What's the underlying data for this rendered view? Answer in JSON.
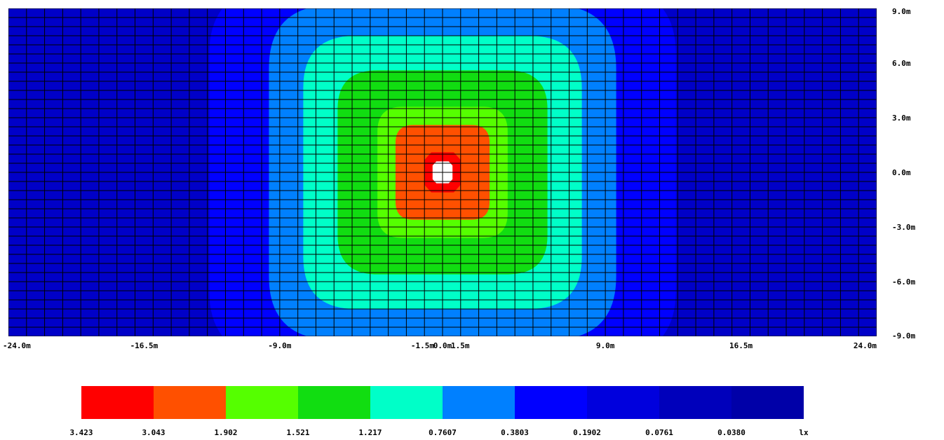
{
  "chart_data": {
    "type": "heatmap",
    "title": "",
    "xlabel": "",
    "ylabel": "",
    "x_unit": "m",
    "y_unit": "m",
    "xlim": [
      -24.0,
      24.0
    ],
    "ylim": [
      -9.0,
      9.0
    ],
    "grid": true,
    "grid_cols": 48,
    "grid_rows": 36,
    "x_ticks": [
      "-24.0m",
      "-16.5m",
      "-9.0m",
      "-1.5m",
      "0.0m",
      "1.5m",
      "9.0m",
      "16.5m",
      "24.0m"
    ],
    "x_tick_values": [
      -24.0,
      -16.5,
      -9.0,
      -1.5,
      0.0,
      1.5,
      9.0,
      16.5,
      24.0
    ],
    "y_ticks": [
      "9.0m",
      "6.0m",
      "3.0m",
      "0.0m",
      "-3.0m",
      "-6.0m",
      "-9.0m"
    ],
    "y_tick_values": [
      9.0,
      6.0,
      3.0,
      0.0,
      -3.0,
      -6.0,
      -9.0
    ],
    "source_center": [
      0.0,
      0.0
    ],
    "contours": [
      {
        "level": "3.423",
        "color": "#ffffff",
        "hx": 0.55,
        "hy": 0.6
      },
      {
        "level": "3.043",
        "color": "#ff0000",
        "hx": 1.0,
        "hy": 1.1
      },
      {
        "level": "1.902",
        "color": "#ff5000",
        "hx": 2.6,
        "hy": 2.6
      },
      {
        "level": "1.521",
        "color": "#55ff00",
        "hx": 3.6,
        "hy": 3.6
      },
      {
        "level": "1.217",
        "color": "#11dd11",
        "hx": 5.8,
        "hy": 5.6
      },
      {
        "level": "0.7607",
        "color": "#00ffc8",
        "hx": 7.7,
        "hy": 7.5
      },
      {
        "level": "0.3803",
        "color": "#0080ff",
        "hx": 9.6,
        "hy": 9.2
      },
      {
        "level": "0.1902",
        "color": "#0000ff",
        "hx": 12.9,
        "hy": 10.5
      }
    ],
    "background_color": "#0000c8",
    "legend": {
      "unit": "lx",
      "placement": "bottom",
      "entries": [
        {
          "label": "3.423",
          "color": "#ff0000"
        },
        {
          "label": "3.043",
          "color": "#ff5000"
        },
        {
          "label": "1.902",
          "color": "#55ff00"
        },
        {
          "label": "1.521",
          "color": "#11dd11"
        },
        {
          "label": "1.217",
          "color": "#00ffc8"
        },
        {
          "label": "0.7607",
          "color": "#0080ff"
        },
        {
          "label": "0.3803",
          "color": "#0000ff"
        },
        {
          "label": "0.1902",
          "color": "#0000dd"
        },
        {
          "label": "0.0761",
          "color": "#0000bb"
        },
        {
          "label": "0.0380",
          "color": "#0000a8"
        }
      ]
    }
  }
}
